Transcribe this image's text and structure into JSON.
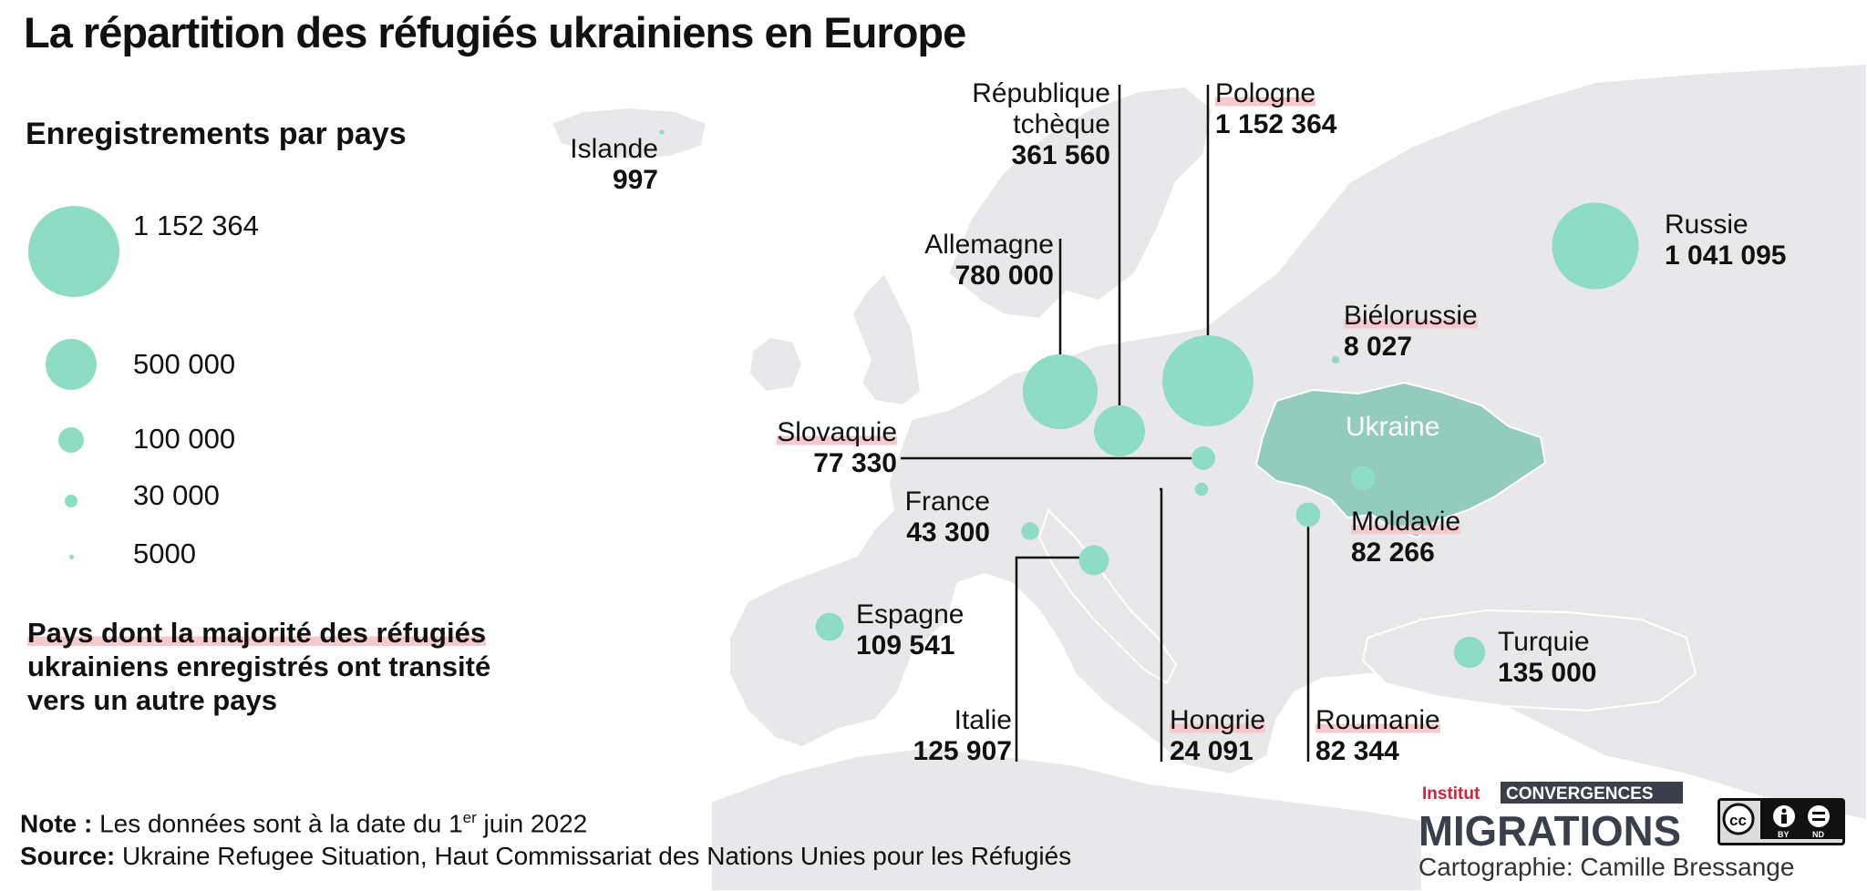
{
  "title": "La répartition des réfugiés ukrainiens en Europe",
  "legend": {
    "title": "Enregistrements par pays",
    "items": [
      {
        "label": "1  152 364",
        "value": 1152364
      },
      {
        "label": "500 000",
        "value": 500000
      },
      {
        "label": "100 000",
        "value": 100000
      },
      {
        "label": "30 000",
        "value": 30000
      },
      {
        "label": "5000",
        "value": 5000
      }
    ],
    "transit_note": {
      "line1": "Pays dont la majorité des réfugiés",
      "line2": "ukrainiens enregistrés ont transité",
      "line3": "vers un autre pays"
    }
  },
  "countries": [
    {
      "key": "islande",
      "name": "Islande",
      "value": "997",
      "transit": false
    },
    {
      "key": "rep-tcheque",
      "name_line1": "République",
      "name_line2": "tchèque",
      "value": "361 560",
      "transit": false
    },
    {
      "key": "pologne",
      "name": "Pologne",
      "value": "1 152 364",
      "transit": true
    },
    {
      "key": "allemagne",
      "name": "Allemagne",
      "value": "780 000",
      "transit": false
    },
    {
      "key": "russie",
      "name": "Russie",
      "value": "1 041 095",
      "transit": false
    },
    {
      "key": "bielorussie",
      "name": "Biélorussie",
      "value": "8 027",
      "transit": true
    },
    {
      "key": "slovaquie",
      "name": "Slovaquie",
      "value": "77 330",
      "transit": true
    },
    {
      "key": "france",
      "name": "France",
      "value": "43 300",
      "transit": false
    },
    {
      "key": "moldavie",
      "name": "Moldavie",
      "value": "82 266",
      "transit": true
    },
    {
      "key": "espagne",
      "name": "Espagne",
      "value": "109 541",
      "transit": false
    },
    {
      "key": "turquie",
      "name": "Turquie",
      "value": "135 000",
      "transit": false
    },
    {
      "key": "italie",
      "name": "Italie",
      "value": "125 907",
      "transit": false
    },
    {
      "key": "hongrie",
      "name": "Hongrie",
      "value": "24 091",
      "transit": true
    },
    {
      "key": "roumanie",
      "name": "Roumanie",
      "value": "82 344",
      "transit": true
    }
  ],
  "ukraine_label": "Ukraine",
  "footer": {
    "note_label": "Note :",
    "note_text_before": " Les données sont à la date du 1",
    "note_sup": "er",
    "note_text_after": " juin 2022",
    "source_label": "Source:",
    "source_text": " Ukraine Refugee Situation, Haut Commissariat des Nations Unies pour les Réfugiés",
    "credit": "Cartographie: Camille Bressange"
  },
  "logo": {
    "institut": "Institut",
    "convergences": "CONVERGENCES",
    "migrations": "MIGRATIONS"
  },
  "license": {
    "by": "BY",
    "nd": "ND"
  },
  "colors": {
    "bubble": "#8fdcc5",
    "ukraine": "#93cbbd",
    "land": "#e8e8ea",
    "sea": "#ffffff",
    "highlight": "#f6c9d1",
    "logo_red": "#d6223b",
    "logo_dark": "#3a3f4a"
  },
  "icons": [
    "cc-icon",
    "attribution-icon",
    "no-derivatives-icon"
  ]
}
